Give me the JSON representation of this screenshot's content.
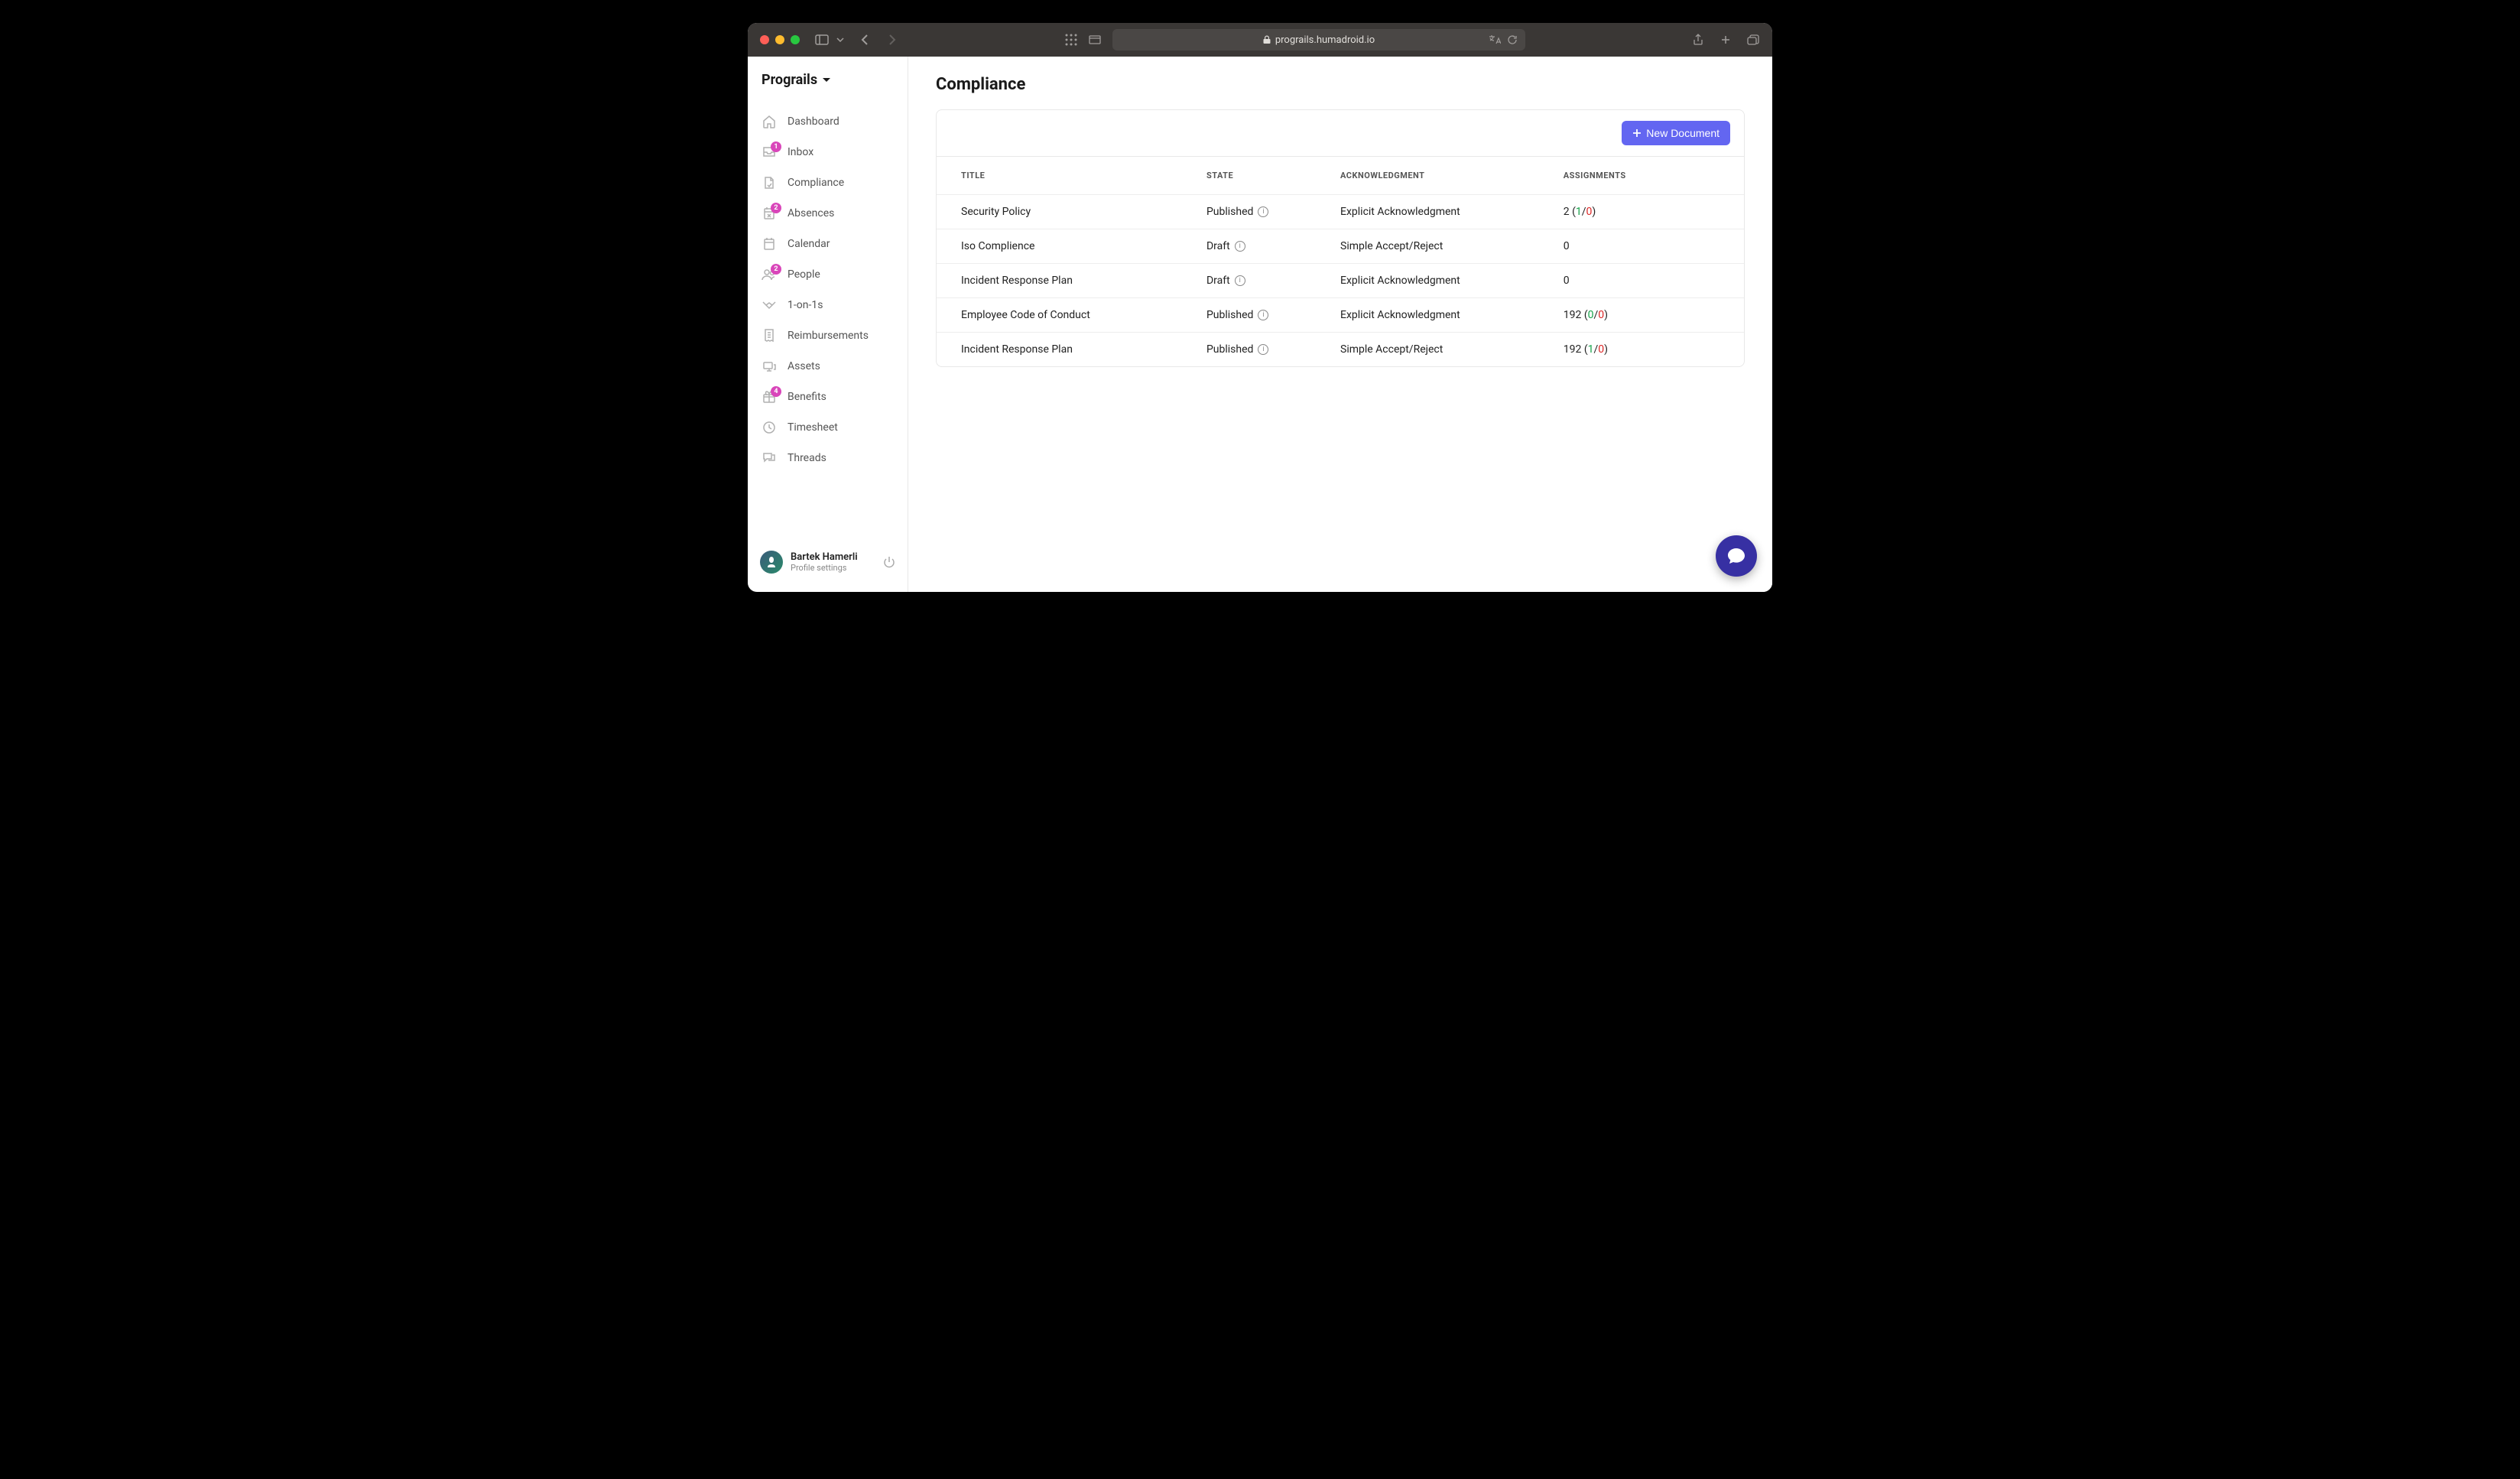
{
  "browser": {
    "url": "prograils.humadroid.io"
  },
  "brand": {
    "name": "Prograils"
  },
  "sidebar": {
    "items": [
      {
        "label": "Dashboard",
        "icon": "home",
        "badge": null
      },
      {
        "label": "Inbox",
        "icon": "inbox",
        "badge": "1"
      },
      {
        "label": "Compliance",
        "icon": "compliance",
        "badge": null
      },
      {
        "label": "Absences",
        "icon": "calendar-x",
        "badge": "2"
      },
      {
        "label": "Calendar",
        "icon": "calendar",
        "badge": null
      },
      {
        "label": "People",
        "icon": "people",
        "badge": "2"
      },
      {
        "label": "1-on-1s",
        "icon": "handshake",
        "badge": null
      },
      {
        "label": "Reimbursements",
        "icon": "receipt",
        "badge": null
      },
      {
        "label": "Assets",
        "icon": "assets",
        "badge": null
      },
      {
        "label": "Benefits",
        "icon": "gift",
        "badge": "4"
      },
      {
        "label": "Timesheet",
        "icon": "clock",
        "badge": null
      },
      {
        "label": "Threads",
        "icon": "chat",
        "badge": null
      }
    ]
  },
  "user": {
    "name": "Bartek Hamerli",
    "subtitle": "Profile settings"
  },
  "page": {
    "title": "Compliance",
    "new_document_label": "New Document"
  },
  "table": {
    "columns": [
      "TITLE",
      "STATE",
      "ACKNOWLEDGMENT",
      "ASSIGNMENTS"
    ],
    "rows": [
      {
        "title": "Security Policy",
        "state": "Published",
        "info": true,
        "ack": "Explicit Acknowledgment",
        "total": "2",
        "green": "1",
        "red": "0"
      },
      {
        "title": "Iso Complience",
        "state": "Draft",
        "info": true,
        "ack": "Simple Accept/Reject",
        "total": "0",
        "green": null,
        "red": null
      },
      {
        "title": "Incident Response Plan",
        "state": "Draft",
        "info": true,
        "ack": "Explicit Acknowledgment",
        "total": "0",
        "green": null,
        "red": null
      },
      {
        "title": "Employee Code of Conduct",
        "state": "Published",
        "info": true,
        "ack": "Explicit Acknowledgment",
        "total": "192",
        "green": "0",
        "red": "0"
      },
      {
        "title": "Incident Response Plan",
        "state": "Published",
        "info": true,
        "ack": "Simple Accept/Reject",
        "total": "192",
        "green": "1",
        "red": "0"
      }
    ]
  },
  "colors": {
    "primary": "#6366f1",
    "badge": "#d946ba",
    "green": "#16a34a",
    "red": "#dc2626",
    "chat": "#3730a3"
  }
}
